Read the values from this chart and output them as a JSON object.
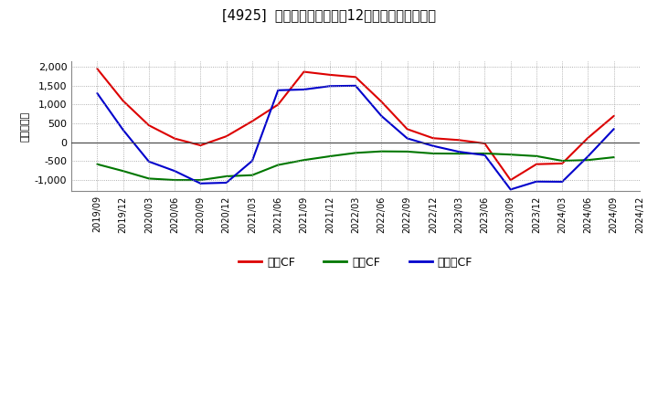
{
  "title": "[4925]  キャッシュフローの12か月移動合計の推移",
  "ylabel": "（百万円）",
  "ylim": [
    -1300,
    2150
  ],
  "yticks": [
    -1000,
    -500,
    0,
    500,
    1000,
    1500,
    2000
  ],
  "background_color": "#ffffff",
  "plot_bg_color": "#ffffff",
  "grid_color": "#999999",
  "x_labels": [
    "2019/09",
    "2019/12",
    "2020/03",
    "2020/06",
    "2020/09",
    "2020/12",
    "2021/03",
    "2021/06",
    "2021/09",
    "2021/12",
    "2022/03",
    "2022/06",
    "2022/09",
    "2022/12",
    "2023/03",
    "2023/06",
    "2023/09",
    "2023/12",
    "2024/03",
    "2024/06",
    "2024/09",
    "2024/12"
  ],
  "series": {
    "営業CF": {
      "color": "#dd0000",
      "values": [
        1950,
        1100,
        450,
        100,
        -80,
        160,
        560,
        1000,
        1870,
        1790,
        1730,
        1080,
        350,
        110,
        60,
        -30,
        -1000,
        -580,
        -560,
        120,
        700,
        null
      ]
    },
    "投資CF": {
      "color": "#007700",
      "values": [
        -580,
        -760,
        -960,
        -1000,
        -1000,
        -900,
        -870,
        -600,
        -470,
        -370,
        -280,
        -240,
        -245,
        -295,
        -300,
        -295,
        -325,
        -365,
        -490,
        -470,
        -395,
        null
      ]
    },
    "フリーCF": {
      "color": "#0000cc",
      "values": [
        1300,
        330,
        -510,
        -760,
        -1090,
        -1070,
        -490,
        1380,
        1400,
        1490,
        1500,
        700,
        105,
        -95,
        -250,
        -340,
        -1250,
        -1040,
        -1045,
        -370,
        355,
        null
      ]
    }
  },
  "legend_entries": [
    "営業CF",
    "投資CF",
    "フリーCF"
  ],
  "legend_colors": [
    "#dd0000",
    "#007700",
    "#0000cc"
  ]
}
